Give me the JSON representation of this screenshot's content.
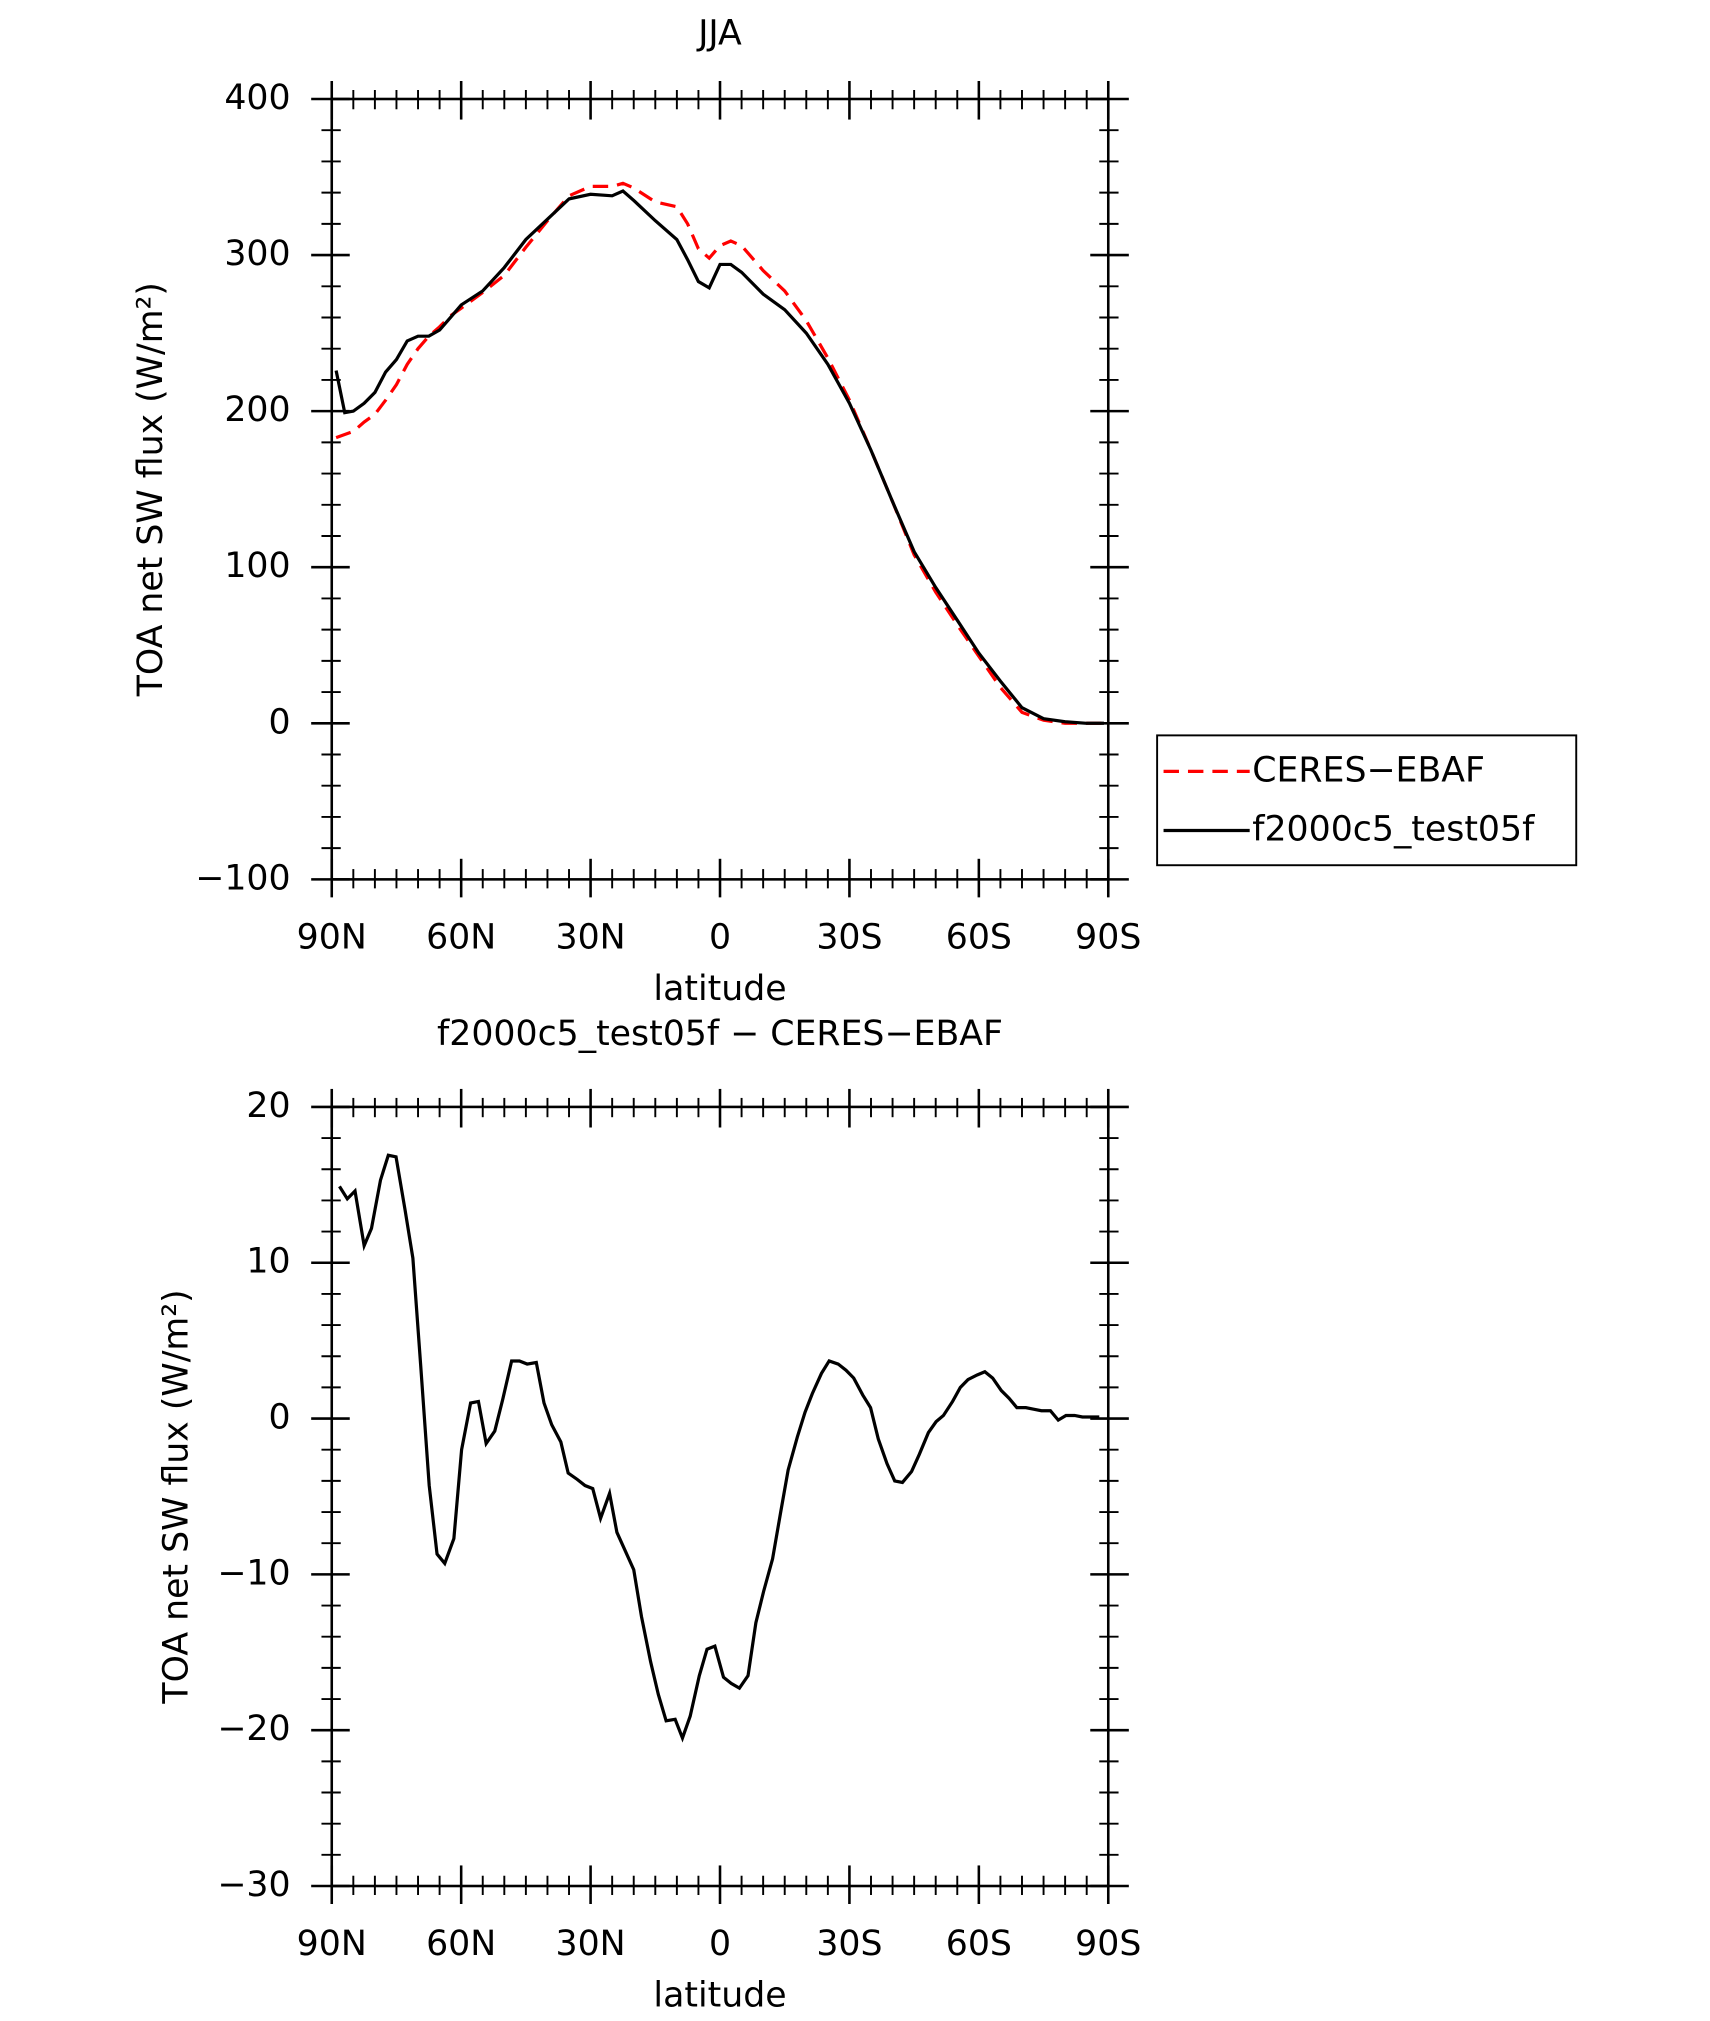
{
  "chart_data": [
    {
      "type": "line",
      "title": "JJA",
      "xlabel": "latitude",
      "ylabel": "TOA net SW flux (W/m²)",
      "xlim": [
        90,
        -90
      ],
      "xticks": [
        {
          "value": 90,
          "label": "90N"
        },
        {
          "value": 60,
          "label": "60N"
        },
        {
          "value": 30,
          "label": "30N"
        },
        0,
        {
          "value": -30,
          "label": "30S"
        },
        {
          "value": -60,
          "label": "60S"
        },
        {
          "value": -90,
          "label": "90S"
        }
      ],
      "ylim": [
        -100,
        400
      ],
      "yticks": [
        {
          "value": -100,
          "label": "−100"
        },
        0,
        100,
        200,
        300,
        400
      ],
      "legend": "right",
      "x": [
        89,
        87,
        85,
        82.5,
        80,
        77.5,
        75,
        72.5,
        70,
        67.5,
        65,
        62.5,
        60,
        55,
        50,
        45,
        40,
        35,
        30,
        25,
        22.5,
        20,
        15,
        10,
        7.5,
        5,
        2.5,
        0,
        -2.5,
        -5,
        -10,
        -15,
        -20,
        -25,
        -30,
        -35,
        -40,
        -45,
        -50,
        -55,
        -60,
        -65,
        -70,
        -75,
        -80,
        -85,
        -89
      ],
      "series": [
        {
          "name": "CERES−EBAF",
          "color": "#ff0000",
          "linestyle": "dashed",
          "values": [
            183,
            185,
            187,
            193,
            198,
            207,
            217,
            230,
            240,
            248,
            254,
            261,
            266,
            276,
            287,
            305,
            322,
            338,
            344,
            344,
            346,
            343,
            334,
            331,
            320,
            304,
            298,
            306,
            309,
            306,
            290,
            277,
            258,
            234,
            207,
            175,
            142,
            108,
            84,
            63,
            43,
            23,
            7,
            2,
            0,
            0,
            0
          ]
        },
        {
          "name": "f2000c5_test05f",
          "color": "#000000",
          "linestyle": "solid",
          "values": [
            226,
            199,
            200,
            205,
            212,
            225,
            233,
            245,
            248,
            248,
            252,
            260,
            268,
            277,
            292,
            310,
            323,
            336,
            339,
            338,
            341,
            335,
            322,
            310,
            297,
            283,
            279,
            294,
            294,
            289,
            275,
            265,
            250,
            230,
            205,
            175,
            142,
            110,
            87,
            66,
            45,
            27,
            10,
            3,
            1,
            0,
            0
          ]
        }
      ]
    },
    {
      "type": "line",
      "title": "f2000c5_test05f − CERES−EBAF",
      "xlabel": "latitude",
      "ylabel": "TOA net SW flux (W/m²)",
      "xlim": [
        90,
        -90
      ],
      "xticks": [
        {
          "value": 90,
          "label": "90N"
        },
        {
          "value": 60,
          "label": "60N"
        },
        {
          "value": 30,
          "label": "30N"
        },
        0,
        {
          "value": -30,
          "label": "30S"
        },
        {
          "value": -60,
          "label": "60S"
        },
        {
          "value": -90,
          "label": "90S"
        }
      ],
      "ylim": [
        -30,
        20
      ],
      "yticks": [
        {
          "value": -30,
          "label": "−30"
        },
        {
          "value": -20,
          "label": "−20"
        },
        {
          "value": -10,
          "label": "−10"
        },
        0,
        10,
        20
      ],
      "color": "#000000",
      "x": [
        88.2,
        86.4,
        84.6,
        82.5,
        80.8,
        78.7,
        76.9,
        75.1,
        73.0,
        71.2,
        69.4,
        67.4,
        65.6,
        63.8,
        61.7,
        59.9,
        57.8,
        56.0,
        54.2,
        52.2,
        50.4,
        48.3,
        46.5,
        44.7,
        42.6,
        40.8,
        39.0,
        36.9,
        35.2,
        33.1,
        31.3,
        29.5,
        27.7,
        25.6,
        23.9,
        22.1,
        20.0,
        18.2,
        16.1,
        14.3,
        12.5,
        10.4,
        8.7,
        6.9,
        4.8,
        3.0,
        1.2,
        -0.8,
        -2.6,
        -4.5,
        -6.5,
        -8.3,
        -10.1,
        -12.2,
        -14.0,
        -15.8,
        -17.9,
        -19.7,
        -21.4,
        -23.5,
        -25.3,
        -27.4,
        -29.2,
        -31.0,
        -33.1,
        -34.9,
        -36.7,
        -38.7,
        -40.5,
        -42.3,
        -44.4,
        -46.2,
        -48.3,
        -50.1,
        -51.8,
        -53.9,
        -55.7,
        -57.5,
        -59.6,
        -61.4,
        -63.2,
        -65.2,
        -67.0,
        -68.8,
        -70.9,
        -72.7,
        -74.5,
        -76.6,
        -78.4,
        -80.2,
        -82.2,
        -84.0,
        -85.8,
        -87.9
      ],
      "values": [
        14.9,
        14.1,
        14.6,
        11.1,
        12.2,
        15.3,
        16.9,
        16.8,
        13.4,
        10.3,
        3.5,
        -4.3,
        -8.7,
        -9.3,
        -7.7,
        -2.0,
        1.0,
        1.1,
        -1.6,
        -0.8,
        1.2,
        3.7,
        3.7,
        3.5,
        3.6,
        1.0,
        -0.4,
        -1.5,
        -3.5,
        -3.9,
        -4.3,
        -4.5,
        -6.4,
        -4.8,
        -7.3,
        -8.4,
        -9.7,
        -12.7,
        -15.6,
        -17.7,
        -19.4,
        -19.3,
        -20.5,
        -19.1,
        -16.5,
        -14.8,
        -14.6,
        -16.6,
        -17.0,
        -17.3,
        -16.5,
        -13.1,
        -11.1,
        -9.0,
        -6.1,
        -3.3,
        -1.2,
        0.4,
        1.6,
        2.9,
        3.7,
        3.5,
        3.1,
        2.6,
        1.5,
        0.7,
        -1.3,
        -2.9,
        -4.0,
        -4.1,
        -3.4,
        -2.3,
        -0.9,
        -0.2,
        0.2,
        1.1,
        2.0,
        2.5,
        2.8,
        3.0,
        2.6,
        1.8,
        1.3,
        0.7,
        0.7,
        0.6,
        0.5,
        0.5,
        -0.1,
        0.2,
        0.2,
        0.1,
        0.1,
        0.1
      ]
    }
  ]
}
